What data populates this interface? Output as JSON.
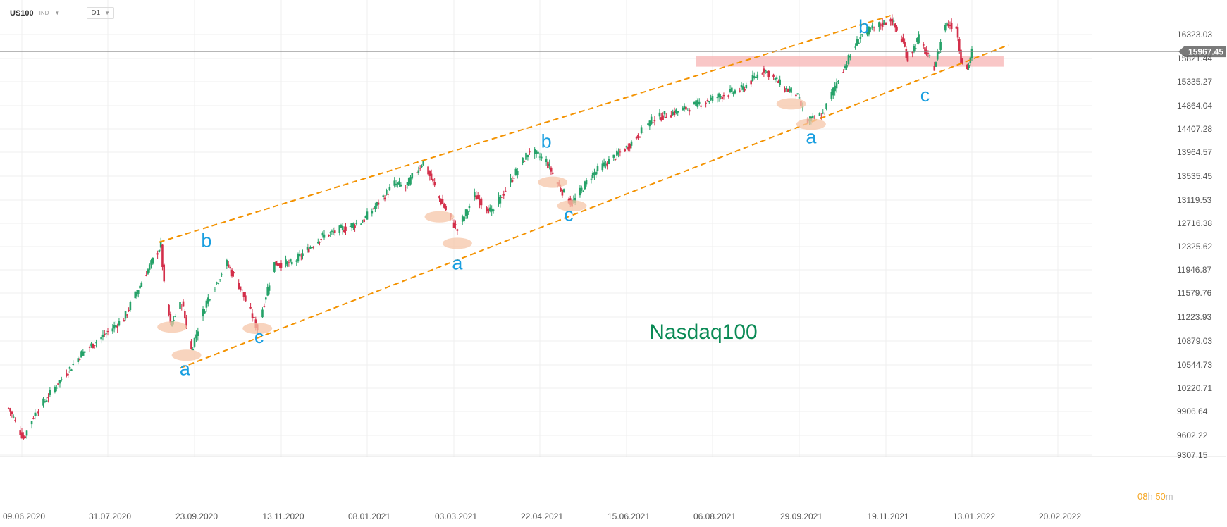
{
  "header": {
    "symbol": "US100",
    "symbol_type": "IND",
    "timeframe": "D1"
  },
  "timer": {
    "hours": "08",
    "hours_unit": "h",
    "minutes": "50",
    "minutes_unit": "m"
  },
  "colors": {
    "bull": "#26a269",
    "bear": "#d32f4a",
    "channel": "#f39200",
    "wave_label": "#1a9fe0",
    "title": "#0a8a55",
    "zone": "#f7b4b4",
    "ellipse": "#f5c6a8",
    "price_tag": "#7a7a7a"
  },
  "chart_data": {
    "type": "candlestick",
    "title": "Nasdaq100",
    "xlabel": "",
    "ylabel": "",
    "ylim": [
      9307.15,
      16700
    ],
    "x_ticks": [
      "09.06.2020",
      "31.07.2020",
      "23.09.2020",
      "13.11.2020",
      "08.01.2021",
      "03.03.2021",
      "22.04.2021",
      "15.06.2021",
      "06.08.2021",
      "29.09.2021",
      "19.11.2021",
      "13.01.2022",
      "20.02.2022"
    ],
    "y_ticks": [
      16323.03,
      15821.44,
      15335.27,
      14864.04,
      14407.28,
      13964.57,
      13535.45,
      13119.53,
      12716.38,
      12325.62,
      11946.87,
      11579.76,
      11223.93,
      10879.03,
      10544.73,
      10220.71,
      9906.64,
      9602.22,
      9307.15
    ],
    "y_tick_labels": [
      "16323.03",
      "15821.44",
      "15335.27",
      "14864.04",
      "14407.28",
      "13964.57",
      "13535.45",
      "13119.53",
      "12716.38",
      "12325.62",
      "11946.87",
      "11579.76",
      "11223.93",
      "10879.03",
      "10544.73",
      "10220.71",
      "9906.64",
      "9602.22",
      "9307.15"
    ],
    "current_price": 15967.45,
    "current_price_label": "15967.45",
    "grid": true,
    "candles_approx": {
      "date_range": [
        "2020-06-01",
        "2021-12-31"
      ],
      "anchors": [
        {
          "x": "2020-06-01",
          "y": 9950
        },
        {
          "x": "2020-06-10",
          "y": 9560
        },
        {
          "x": "2020-06-16",
          "y": 9850
        },
        {
          "x": "2020-07-15",
          "y": 10700
        },
        {
          "x": "2020-08-10",
          "y": 11200
        },
        {
          "x": "2020-09-02",
          "y": 12350
        },
        {
          "x": "2020-09-04",
          "y": 11700
        },
        {
          "x": "2020-09-08",
          "y": 11100
        },
        {
          "x": "2020-09-15",
          "y": 11450
        },
        {
          "x": "2020-09-21",
          "y": 10750
        },
        {
          "x": "2020-09-30",
          "y": 11450
        },
        {
          "x": "2020-10-12",
          "y": 12050
        },
        {
          "x": "2020-10-20",
          "y": 11650
        },
        {
          "x": "2020-10-30",
          "y": 11050
        },
        {
          "x": "2020-11-09",
          "y": 12050
        },
        {
          "x": "2020-11-20",
          "y": 12050
        },
        {
          "x": "2020-12-10",
          "y": 12500
        },
        {
          "x": "2021-01-05",
          "y": 12750
        },
        {
          "x": "2021-01-25",
          "y": 13400
        },
        {
          "x": "2021-02-01",
          "y": 13350
        },
        {
          "x": "2021-02-12",
          "y": 13800
        },
        {
          "x": "2021-02-22",
          "y": 13150
        },
        {
          "x": "2021-03-05",
          "y": 12600
        },
        {
          "x": "2021-03-15",
          "y": 13200
        },
        {
          "x": "2021-03-25",
          "y": 12900
        },
        {
          "x": "2021-04-05",
          "y": 13450
        },
        {
          "x": "2021-04-16",
          "y": 14000
        },
        {
          "x": "2021-04-26",
          "y": 13800
        },
        {
          "x": "2021-05-04",
          "y": 13350
        },
        {
          "x": "2021-05-12",
          "y": 13050
        },
        {
          "x": "2021-05-24",
          "y": 13550
        },
        {
          "x": "2021-06-15",
          "y": 14050
        },
        {
          "x": "2021-07-01",
          "y": 14600
        },
        {
          "x": "2021-07-20",
          "y": 14800
        },
        {
          "x": "2021-08-10",
          "y": 15050
        },
        {
          "x": "2021-08-25",
          "y": 15200
        },
        {
          "x": "2021-09-07",
          "y": 15600
        },
        {
          "x": "2021-09-20",
          "y": 15200
        },
        {
          "x": "2021-09-27",
          "y": 15100
        },
        {
          "x": "2021-10-04",
          "y": 14550
        },
        {
          "x": "2021-10-13",
          "y": 14700
        },
        {
          "x": "2021-10-22",
          "y": 15400
        },
        {
          "x": "2021-11-04",
          "y": 16300
        },
        {
          "x": "2021-11-22",
          "y": 16650
        },
        {
          "x": "2021-11-30",
          "y": 16150
        },
        {
          "x": "2021-12-03",
          "y": 15800
        },
        {
          "x": "2021-12-10",
          "y": 16250
        },
        {
          "x": "2021-12-15",
          "y": 15900
        },
        {
          "x": "2021-12-20",
          "y": 15650
        },
        {
          "x": "2021-12-27",
          "y": 16550
        },
        {
          "x": "2022-01-03",
          "y": 16500
        },
        {
          "x": "2022-01-06",
          "y": 15800
        },
        {
          "x": "2022-01-10",
          "y": 15600
        },
        {
          "x": "2022-01-13",
          "y": 15967.45
        }
      ]
    },
    "channel": {
      "upper": [
        {
          "x": "2020-09-01",
          "y": 12400
        },
        {
          "x": "2021-11-22",
          "y": 16720
        }
      ],
      "lower": [
        {
          "x": "2020-09-14",
          "y": 10500
        },
        {
          "x": "2022-01-29",
          "y": 16100
        }
      ]
    },
    "resistance_zone": {
      "x": [
        "2021-07-27",
        "2022-01-27"
      ],
      "y": [
        15650,
        15880
      ]
    },
    "wave_labels": [
      {
        "text": "a",
        "x": "2020-09-17",
        "y": 10400
      },
      {
        "text": "b",
        "x": "2020-09-30",
        "y": 12320
      },
      {
        "text": "c",
        "x": "2020-10-31",
        "y": 10850
      },
      {
        "text": "a",
        "x": "2021-03-05",
        "y": 11950
      },
      {
        "text": "b",
        "x": "2021-04-26",
        "y": 14050
      },
      {
        "text": "c",
        "x": "2021-05-10",
        "y": 12760
      },
      {
        "text": "a",
        "x": "2021-10-06",
        "y": 14130
      },
      {
        "text": "b",
        "x": "2021-11-06",
        "y": 16350
      },
      {
        "text": "c",
        "x": "2021-12-14",
        "y": 14950
      }
    ],
    "pivot_markers": [
      {
        "x": "2020-09-09",
        "y": 11080
      },
      {
        "x": "2020-09-18",
        "y": 10680
      },
      {
        "x": "2020-10-30",
        "y": 11060
      },
      {
        "x": "2021-02-22",
        "y": 12830
      },
      {
        "x": "2021-03-05",
        "y": 12380
      },
      {
        "x": "2021-04-30",
        "y": 13430
      },
      {
        "x": "2021-05-12",
        "y": 13020
      },
      {
        "x": "2021-09-24",
        "y": 14900
      },
      {
        "x": "2021-10-06",
        "y": 14500
      }
    ]
  }
}
